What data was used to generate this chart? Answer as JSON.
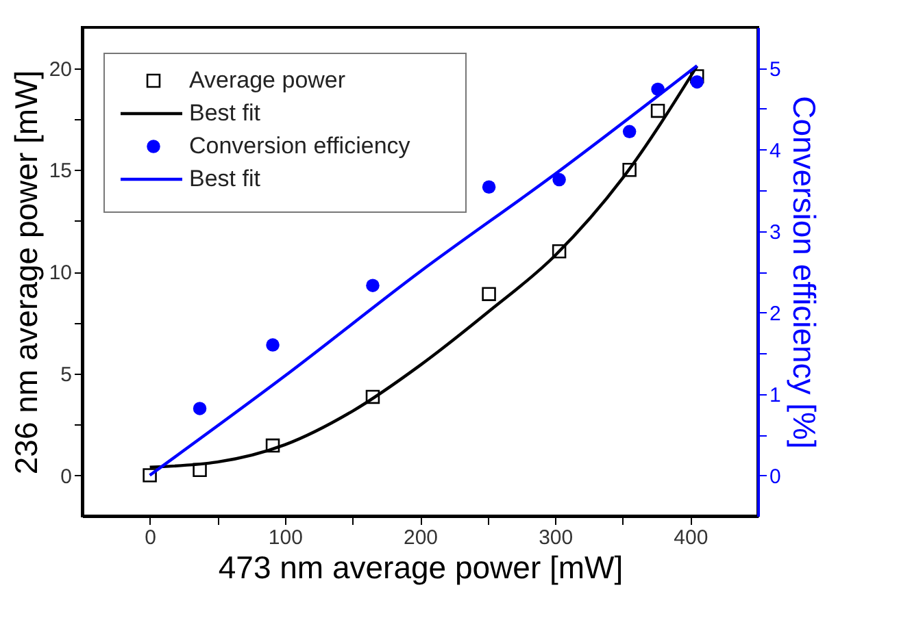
{
  "chart_data": {
    "type": "scatter",
    "xlabel": "473 nm average power [mW]",
    "ylabel": "236 nm average power [mW]",
    "y2label": "Conversion efficiency [%]",
    "xlim": [
      -50,
      450
    ],
    "xticks": [
      0,
      {
        "value": 50,
        "label": null
      },
      100,
      {
        "value": 150,
        "label": null
      },
      200,
      {
        "value": 250,
        "label": null
      },
      300,
      {
        "value": 350,
        "label": null
      },
      400
    ],
    "ylim": [
      -2,
      22
    ],
    "yticks": [
      0,
      {
        "value": 2.5,
        "label": null
      },
      5,
      {
        "value": 7.5,
        "label": null
      },
      10,
      {
        "value": 12.5,
        "label": null
      },
      15,
      {
        "value": 17.5,
        "label": null
      },
      20
    ],
    "y2lim": [
      -0.5,
      5.5
    ],
    "y2ticks": [
      0,
      {
        "value": 0.5,
        "label": null
      },
      1,
      {
        "value": 1.5,
        "label": null
      },
      2,
      {
        "value": 2.5,
        "label": null
      },
      3,
      {
        "value": 3.5,
        "label": null
      },
      4,
      {
        "value": 4.5,
        "label": null
      },
      5
    ],
    "grid": false,
    "legend": "top left",
    "series": [
      {
        "name": "Average power",
        "marker": "square",
        "color": "#000000",
        "x": [
          0,
          37,
          91,
          165,
          251,
          303,
          355,
          376,
          405
        ],
        "values": [
          0,
          0.26,
          1.46,
          3.85,
          8.9,
          11.0,
          15.0,
          17.9,
          19.6
        ]
      },
      {
        "name": "Best fit",
        "type": "line",
        "color": "#000000",
        "x": [
          0,
          50,
          100,
          150,
          200,
          250,
          300,
          350,
          405
        ],
        "values": [
          0.4,
          0.65,
          1.5,
          3.15,
          5.4,
          8.0,
          10.8,
          14.6,
          20.1
        ]
      },
      {
        "name": "Conversion efficiency",
        "marker": "circle",
        "axis": "y2",
        "color": "#0000ff",
        "x": [
          37,
          91,
          165,
          251,
          303,
          355,
          376,
          405
        ],
        "values": [
          0.82,
          1.6,
          2.33,
          3.54,
          3.63,
          4.22,
          4.74,
          4.83
        ]
      },
      {
        "name": "Best fit",
        "type": "line",
        "axis": "y2",
        "color": "#0000ff",
        "x": [
          0,
          100,
          200,
          300,
          405
        ],
        "values": [
          0,
          1.22,
          2.5,
          3.7,
          5.03
        ]
      }
    ]
  }
}
